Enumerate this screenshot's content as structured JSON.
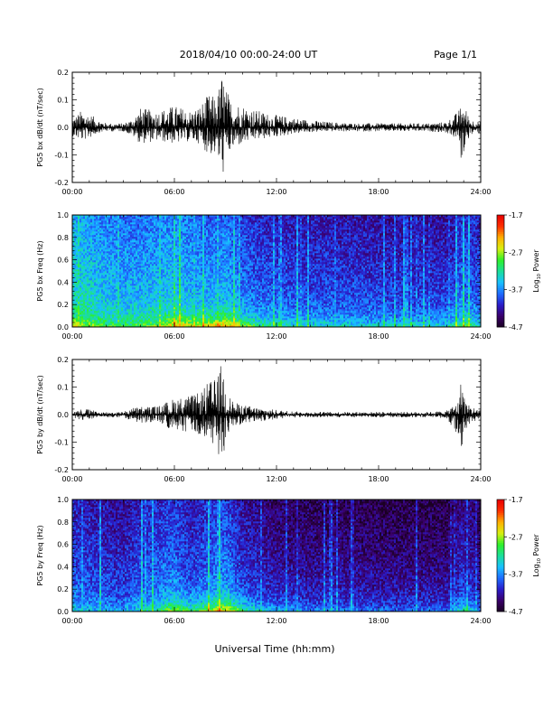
{
  "header": {
    "title": "2018/04/10  00:00-24:00 UT",
    "page": "Page 1/1"
  },
  "xlabel": "Universal Time (hh:mm)",
  "colorbar_ticks": [
    "-1.7",
    "-2.7",
    "-3.7",
    "-4.7"
  ],
  "colorbar_label_main": "Log",
  "colorbar_label_sub": "10",
  "colorbar_label_rest": " Power",
  "colors": {
    "colormap": [
      "#1a0022",
      "#3a006a",
      "#2a1cc8",
      "#1e6cff",
      "#18c0ff",
      "#1adf9a",
      "#2ef02a",
      "#d8f010",
      "#ffb000",
      "#ff3000",
      "#e80000"
    ]
  },
  "chart_data": [
    {
      "type": "line",
      "ylabel": "PG5 bx dB/dt (nT/sec)",
      "xticks": [
        "00:00",
        "06:00",
        "12:00",
        "18:00",
        "24:00"
      ],
      "xlim": [
        0,
        24
      ],
      "ylim": [
        -0.2,
        0.2
      ],
      "yticks": [
        "-0.2",
        "-0.1",
        "0.0",
        "0.1",
        "0.2"
      ],
      "ytick_values": [
        -0.2,
        -0.1,
        0.0,
        0.1,
        0.2
      ],
      "envelope": {
        "x": [
          0,
          0.5,
          1.0,
          1.5,
          2.0,
          3.0,
          3.5,
          4.0,
          5.0,
          6.0,
          7.0,
          7.5,
          8.0,
          8.5,
          8.8,
          9.0,
          9.3,
          9.7,
          10.5,
          11.5,
          12.5,
          13.5,
          15.0,
          16.5,
          18.0,
          19.5,
          21.0,
          22.0,
          22.7,
          22.9,
          23.1,
          23.4,
          24.0
        ],
        "upper": [
          0.03,
          0.06,
          0.05,
          0.03,
          0.015,
          0.015,
          0.03,
          0.07,
          0.06,
          0.08,
          0.06,
          0.08,
          0.12,
          0.11,
          0.2,
          0.15,
          0.1,
          0.09,
          0.07,
          0.05,
          0.04,
          0.03,
          0.02,
          0.015,
          0.015,
          0.015,
          0.015,
          0.02,
          0.06,
          0.09,
          0.07,
          0.03,
          0.02
        ],
        "lower": [
          -0.03,
          -0.05,
          -0.04,
          -0.02,
          -0.015,
          -0.015,
          -0.03,
          -0.06,
          -0.05,
          -0.06,
          -0.05,
          -0.06,
          -0.1,
          -0.1,
          -0.19,
          -0.13,
          -0.09,
          -0.07,
          -0.05,
          -0.04,
          -0.03,
          -0.02,
          -0.015,
          -0.015,
          -0.015,
          -0.015,
          -0.015,
          -0.02,
          -0.05,
          -0.15,
          -0.06,
          -0.03,
          -0.02
        ]
      }
    },
    {
      "type": "heatmap",
      "ylabel": "PG5 bx Freq (Hz)",
      "xticks": [
        "00:00",
        "06:00",
        "12:00",
        "18:00",
        "24:00"
      ],
      "xlim": [
        0,
        24
      ],
      "ylim": [
        0,
        1.0
      ],
      "yticks": [
        "0.0",
        "0.2",
        "0.4",
        "0.6",
        "0.8",
        "1.0"
      ],
      "ytick_values": [
        0.0,
        0.2,
        0.4,
        0.6,
        0.8,
        1.0
      ],
      "zlim": [
        -4.7,
        -1.7
      ],
      "profile": {
        "x": [
          0,
          1,
          2,
          3,
          4,
          5,
          6,
          7,
          8,
          9,
          10,
          11,
          12,
          14,
          16,
          18,
          20,
          22,
          23,
          24
        ],
        "level": [
          -3.3,
          -3.4,
          -3.5,
          -3.55,
          -3.55,
          -3.5,
          -3.45,
          -3.55,
          -3.6,
          -3.55,
          -3.75,
          -3.85,
          -3.9,
          -3.95,
          -3.95,
          -4.0,
          -4.0,
          -4.0,
          -3.8,
          -3.9
        ],
        "low_boost": [
          0.5,
          0.5,
          0.4,
          0.4,
          0.5,
          0.6,
          0.9,
          0.9,
          1.0,
          1.3,
          0.9,
          0.7,
          0.6,
          0.5,
          0.5,
          0.5,
          0.5,
          0.5,
          0.8,
          0.5
        ]
      }
    },
    {
      "type": "line",
      "ylabel": "PG5 by dB/dt (nT/sec)",
      "xticks": [
        "00:00",
        "06:00",
        "12:00",
        "18:00",
        "24:00"
      ],
      "xlim": [
        0,
        24
      ],
      "ylim": [
        -0.2,
        0.2
      ],
      "yticks": [
        "-0.2",
        "-0.1",
        "0.0",
        "0.1",
        "0.2"
      ],
      "ytick_values": [
        -0.2,
        -0.1,
        0.0,
        0.1,
        0.2
      ],
      "envelope": {
        "x": [
          0,
          0.5,
          1.0,
          1.5,
          2.0,
          3.0,
          3.5,
          4.0,
          5.0,
          6.0,
          7.0,
          7.5,
          8.0,
          8.5,
          8.8,
          9.0,
          9.3,
          9.7,
          10.5,
          11.5,
          12.5,
          13.5,
          15.0,
          16.5,
          18.0,
          19.5,
          21.0,
          22.0,
          22.7,
          22.9,
          23.1,
          23.4,
          24.0
        ],
        "upper": [
          0.01,
          0.02,
          0.02,
          0.01,
          0.01,
          0.01,
          0.025,
          0.03,
          0.03,
          0.06,
          0.07,
          0.08,
          0.12,
          0.13,
          0.2,
          0.12,
          0.06,
          0.04,
          0.03,
          0.02,
          0.015,
          0.01,
          0.01,
          0.01,
          0.01,
          0.01,
          0.01,
          0.015,
          0.05,
          0.16,
          0.05,
          0.03,
          0.02
        ],
        "lower": [
          -0.01,
          -0.02,
          -0.02,
          -0.01,
          -0.01,
          -0.01,
          -0.025,
          -0.03,
          -0.03,
          -0.06,
          -0.07,
          -0.08,
          -0.12,
          -0.12,
          -0.2,
          -0.1,
          -0.06,
          -0.04,
          -0.03,
          -0.02,
          -0.015,
          -0.01,
          -0.01,
          -0.01,
          -0.01,
          -0.01,
          -0.01,
          -0.015,
          -0.08,
          -0.18,
          -0.06,
          -0.03,
          -0.02
        ]
      }
    },
    {
      "type": "heatmap",
      "ylabel": "PG5 by Freq (Hz)",
      "xticks": [
        "00:00",
        "06:00",
        "12:00",
        "18:00",
        "24:00"
      ],
      "xlim": [
        0,
        24
      ],
      "ylim": [
        0,
        1.0
      ],
      "yticks": [
        "0.0",
        "0.2",
        "0.4",
        "0.6",
        "0.8",
        "1.0"
      ],
      "ytick_values": [
        0.0,
        0.2,
        0.4,
        0.6,
        0.8,
        1.0
      ],
      "zlim": [
        -4.7,
        -1.7
      ],
      "profile": {
        "x": [
          0,
          1,
          2,
          3,
          4,
          5,
          6,
          7,
          8,
          9,
          10,
          11,
          12,
          14,
          16,
          18,
          20,
          22,
          23,
          24
        ],
        "level": [
          -3.9,
          -3.95,
          -4.0,
          -4.05,
          -3.9,
          -3.85,
          -3.75,
          -3.95,
          -3.8,
          -3.7,
          -4.0,
          -4.1,
          -4.2,
          -4.25,
          -4.25,
          -4.3,
          -4.3,
          -4.3,
          -4.05,
          -4.25
        ],
        "low_boost": [
          0.3,
          0.3,
          0.3,
          0.3,
          0.4,
          0.6,
          1.0,
          0.8,
          0.9,
          1.3,
          0.9,
          0.6,
          0.5,
          0.4,
          0.35,
          0.35,
          0.35,
          0.35,
          0.8,
          0.3
        ]
      }
    }
  ]
}
